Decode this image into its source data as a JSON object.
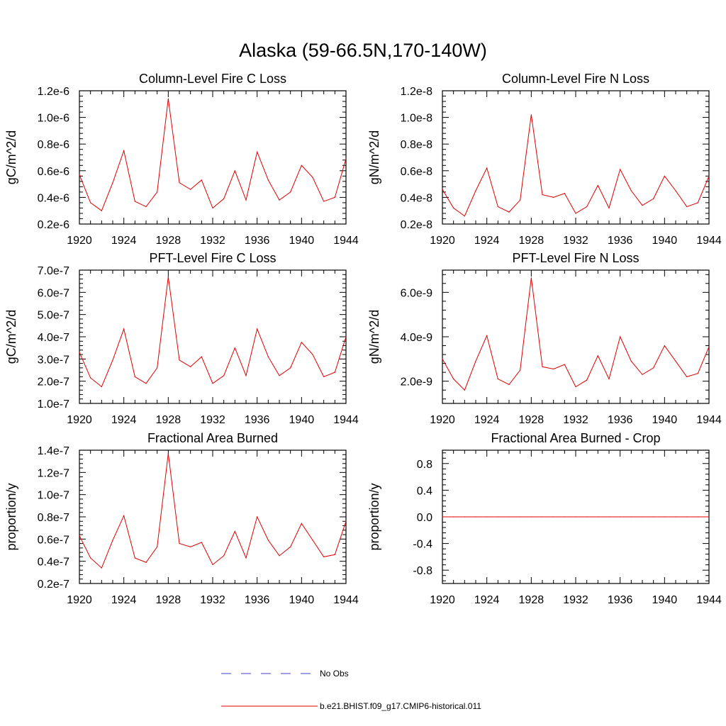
{
  "figure": {
    "title": "Alaska (59-66.5N,170-140W)",
    "legend": [
      {
        "label": "No Obs",
        "color": "#4040c0",
        "style": "dashed"
      },
      {
        "label": "b.e21.BHIST.f09_g17.CMIP6-historical.011",
        "color": "#e00000",
        "style": "solid"
      }
    ],
    "line_color": "#e00000"
  },
  "chart_data": [
    {
      "type": "line",
      "title": "Column-Level Fire C Loss",
      "ylabel": "gC/m^2/d",
      "xlim": [
        1920,
        1944
      ],
      "ylim": [
        2e-07,
        1.2e-06
      ],
      "xticks": [
        1920,
        1924,
        1928,
        1932,
        1936,
        1940,
        1944
      ],
      "xtick_labels": [
        "1920",
        "1924",
        "1928",
        "1932",
        "1936",
        "1940",
        "1944"
      ],
      "yticks": [
        2e-07,
        4e-07,
        6e-07,
        8e-07,
        1e-06,
        1.2e-06
      ],
      "ytick_labels": [
        "0.2e-6",
        "0.4e-6",
        "0.6e-6",
        "0.8e-6",
        "1.0e-6",
        "1.2e-6"
      ],
      "x": [
        1920,
        1921,
        1922,
        1923,
        1924,
        1925,
        1926,
        1927,
        1928,
        1929,
        1930,
        1931,
        1932,
        1933,
        1934,
        1935,
        1936,
        1937,
        1938,
        1939,
        1940,
        1941,
        1942,
        1943,
        1944
      ],
      "series": [
        {
          "name": "b.e21.BHIST.f09_g17.CMIP6-historical.011",
          "values": [
            5.7e-07,
            3.6e-07,
            3e-07,
            5.1e-07,
            7.5e-07,
            3.7e-07,
            3.3e-07,
            4.4e-07,
            1.14e-06,
            5.1e-07,
            4.6e-07,
            5.3e-07,
            3.2e-07,
            3.9e-07,
            6e-07,
            3.8e-07,
            7.4e-07,
            5.3e-07,
            3.8e-07,
            4.4e-07,
            6.4e-07,
            5.5e-07,
            3.7e-07,
            4e-07,
            6.9e-07
          ]
        }
      ]
    },
    {
      "type": "line",
      "title": "Column-Level Fire N Loss",
      "ylabel": "gN/m^2/d",
      "xlim": [
        1920,
        1944
      ],
      "ylim": [
        2e-09,
        1.2e-08
      ],
      "xticks": [
        1920,
        1924,
        1928,
        1932,
        1936,
        1940,
        1944
      ],
      "xtick_labels": [
        "1920",
        "1924",
        "1928",
        "1932",
        "1936",
        "1940",
        "1944"
      ],
      "yticks": [
        2e-09,
        4e-09,
        6e-09,
        8e-09,
        1e-08,
        1.2e-08
      ],
      "ytick_labels": [
        "0.2e-8",
        "0.4e-8",
        "0.6e-8",
        "0.8e-8",
        "1.0e-8",
        "1.2e-8"
      ],
      "x": [
        1920,
        1921,
        1922,
        1923,
        1924,
        1925,
        1926,
        1927,
        1928,
        1929,
        1930,
        1931,
        1932,
        1933,
        1934,
        1935,
        1936,
        1937,
        1938,
        1939,
        1940,
        1941,
        1942,
        1943,
        1944
      ],
      "series": [
        {
          "name": "b.e21.BHIST.f09_g17.CMIP6-historical.011",
          "values": [
            4.6e-09,
            3.2e-09,
            2.6e-09,
            4.5e-09,
            6.2e-09,
            3.3e-09,
            2.9e-09,
            3.8e-09,
            1.02e-08,
            4.2e-09,
            4e-09,
            4.3e-09,
            2.8e-09,
            3.3e-09,
            4.9e-09,
            3.2e-09,
            6.1e-09,
            4.5e-09,
            3.4e-09,
            3.9e-09,
            5.6e-09,
            4.5e-09,
            3.3e-09,
            3.6e-09,
            5.6e-09
          ]
        }
      ]
    },
    {
      "type": "line",
      "title": "PFT-Level Fire C Loss",
      "ylabel": "gC/m^2/d",
      "xlim": [
        1920,
        1944
      ],
      "ylim": [
        1e-07,
        7e-07
      ],
      "xticks": [
        1920,
        1924,
        1928,
        1932,
        1936,
        1940,
        1944
      ],
      "xtick_labels": [
        "1920",
        "1924",
        "1928",
        "1932",
        "1936",
        "1940",
        "1944"
      ],
      "yticks": [
        1e-07,
        2e-07,
        3e-07,
        4e-07,
        5e-07,
        6e-07,
        7e-07
      ],
      "ytick_labels": [
        "1.0e-7",
        "2.0e-7",
        "3.0e-7",
        "4.0e-7",
        "5.0e-7",
        "6.0e-7",
        "7.0e-7"
      ],
      "x": [
        1920,
        1921,
        1922,
        1923,
        1924,
        1925,
        1926,
        1927,
        1928,
        1929,
        1930,
        1931,
        1932,
        1933,
        1934,
        1935,
        1936,
        1937,
        1938,
        1939,
        1940,
        1941,
        1942,
        1943,
        1944
      ],
      "series": [
        {
          "name": "b.e21.BHIST.f09_g17.CMIP6-historical.011",
          "values": [
            3.3e-07,
            2.15e-07,
            1.75e-07,
            2.95e-07,
            4.35e-07,
            2.2e-07,
            1.9e-07,
            2.6e-07,
            6.7e-07,
            2.95e-07,
            2.65e-07,
            3.1e-07,
            1.9e-07,
            2.25e-07,
            3.5e-07,
            2.25e-07,
            4.35e-07,
            3.1e-07,
            2.25e-07,
            2.6e-07,
            3.75e-07,
            3.2e-07,
            2.2e-07,
            2.4e-07,
            4e-07
          ]
        }
      ]
    },
    {
      "type": "line",
      "title": "PFT-Level Fire N Loss",
      "ylabel": "gN/m^2/d",
      "xlim": [
        1920,
        1944
      ],
      "ylim": [
        1e-09,
        7e-09
      ],
      "xticks": [
        1920,
        1924,
        1928,
        1932,
        1936,
        1940,
        1944
      ],
      "xtick_labels": [
        "1920",
        "1924",
        "1928",
        "1932",
        "1936",
        "1940",
        "1944"
      ],
      "yticks": [
        2e-09,
        4e-09,
        6e-09
      ],
      "ytick_labels": [
        "2.0e-9",
        "4.0e-9",
        "6.0e-9"
      ],
      "x": [
        1920,
        1921,
        1922,
        1923,
        1924,
        1925,
        1926,
        1927,
        1928,
        1929,
        1930,
        1931,
        1932,
        1933,
        1934,
        1935,
        1936,
        1937,
        1938,
        1939,
        1940,
        1941,
        1942,
        1943,
        1944
      ],
      "series": [
        {
          "name": "b.e21.BHIST.f09_g17.CMIP6-historical.011",
          "values": [
            3e-09,
            2.1e-09,
            1.6e-09,
            2.9e-09,
            4.05e-09,
            2.1e-09,
            1.85e-09,
            2.5e-09,
            6.65e-09,
            2.65e-09,
            2.55e-09,
            2.75e-09,
            1.75e-09,
            2.05e-09,
            3.15e-09,
            2.1e-09,
            4e-09,
            2.9e-09,
            2.3e-09,
            2.6e-09,
            3.6e-09,
            2.9e-09,
            2.2e-09,
            2.35e-09,
            3.55e-09
          ]
        }
      ]
    },
    {
      "type": "line",
      "title": "Fractional Area Burned",
      "ylabel": "proportion/y",
      "xlim": [
        1920,
        1944
      ],
      "ylim": [
        2e-08,
        1.4e-07
      ],
      "xticks": [
        1920,
        1924,
        1928,
        1932,
        1936,
        1940,
        1944
      ],
      "xtick_labels": [
        "1920",
        "1924",
        "1928",
        "1932",
        "1936",
        "1940",
        "1944"
      ],
      "yticks": [
        2e-08,
        4e-08,
        6e-08,
        8e-08,
        1e-07,
        1.2e-07,
        1.4e-07
      ],
      "ytick_labels": [
        "0.2e-7",
        "0.4e-7",
        "0.6e-7",
        "0.8e-7",
        "1.0e-7",
        "1.2e-7",
        "1.4e-7"
      ],
      "x": [
        1920,
        1921,
        1922,
        1923,
        1924,
        1925,
        1926,
        1927,
        1928,
        1929,
        1930,
        1931,
        1932,
        1933,
        1934,
        1935,
        1936,
        1937,
        1938,
        1939,
        1940,
        1941,
        1942,
        1943,
        1944
      ],
      "series": [
        {
          "name": "b.e21.BHIST.f09_g17.CMIP6-historical.011",
          "values": [
            6.3e-08,
            4.3e-08,
            3.4e-08,
            5.9e-08,
            8.1e-08,
            4.3e-08,
            3.9e-08,
            5.3e-08,
            1.37e-07,
            5.6e-08,
            5.3e-08,
            5.7e-08,
            3.7e-08,
            4.5e-08,
            6.7e-08,
            4.3e-08,
            8e-08,
            5.9e-08,
            4.5e-08,
            5.3e-08,
            7.4e-08,
            5.9e-08,
            4.4e-08,
            4.6e-08,
            7.6e-08
          ]
        }
      ]
    },
    {
      "type": "line",
      "title": "Fractional Area Burned - Crop",
      "ylabel": "proportion/y",
      "xlim": [
        1920,
        1944
      ],
      "ylim": [
        -1.0,
        1.0
      ],
      "xticks": [
        1920,
        1924,
        1928,
        1932,
        1936,
        1940,
        1944
      ],
      "xtick_labels": [
        "1920",
        "1924",
        "1928",
        "1932",
        "1936",
        "1940",
        "1944"
      ],
      "yticks": [
        -0.8,
        -0.4,
        0.0,
        0.4,
        0.8
      ],
      "ytick_labels": [
        "-0.8",
        "-0.4",
        "0.0",
        "0.4",
        "0.8"
      ],
      "x": [
        1920,
        1921,
        1922,
        1923,
        1924,
        1925,
        1926,
        1927,
        1928,
        1929,
        1930,
        1931,
        1932,
        1933,
        1934,
        1935,
        1936,
        1937,
        1938,
        1939,
        1940,
        1941,
        1942,
        1943,
        1944
      ],
      "series": [
        {
          "name": "b.e21.BHIST.f09_g17.CMIP6-historical.011",
          "values": [
            0,
            0,
            0,
            0,
            0,
            0,
            0,
            0,
            0,
            0,
            0,
            0,
            0,
            0,
            0,
            0,
            0,
            0,
            0,
            0,
            0,
            0,
            0,
            0,
            0
          ]
        }
      ]
    }
  ]
}
